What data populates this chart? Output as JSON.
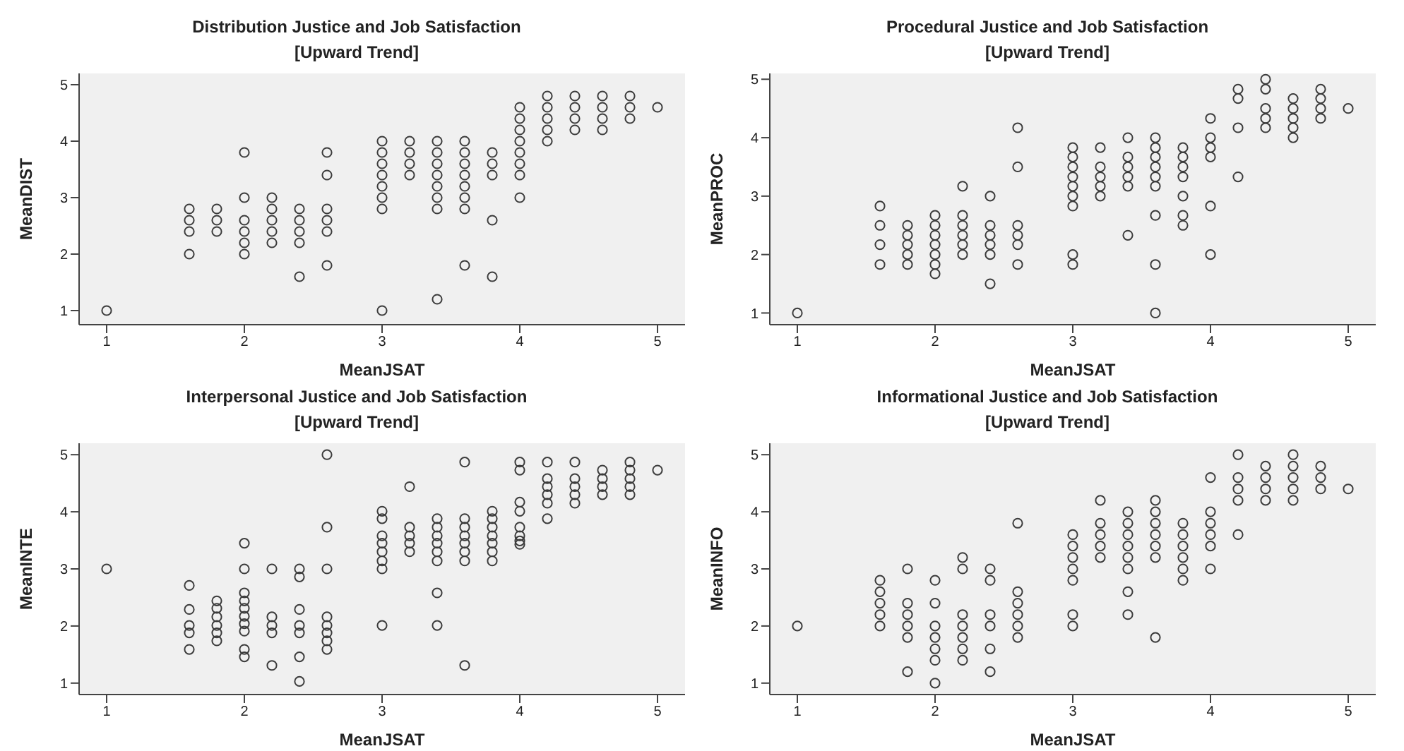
{
  "chart_data": [
    {
      "type": "scatter",
      "title": "Distribution Justice and Job Satisfaction",
      "subtitle": "[Upward Trend]",
      "xlabel": "MeanJSAT",
      "ylabel": "MeanDIST",
      "color": "#3c3c3c",
      "marker": "circle",
      "grid": false,
      "xlim": [
        0.8,
        5.2
      ],
      "ylim": [
        0.75,
        5.2
      ],
      "xticks": [
        1,
        2,
        3,
        4,
        5
      ],
      "yticks": [
        1,
        2,
        3,
        4,
        5
      ],
      "x": [
        1,
        1.6,
        1.6,
        1.6,
        1.6,
        1.8,
        1.8,
        1.8,
        2,
        2,
        2,
        2,
        2,
        2,
        2.2,
        2.2,
        2.2,
        2.2,
        2.2,
        2.4,
        2.4,
        2.4,
        2.4,
        2.4,
        2.6,
        2.6,
        2.6,
        2.6,
        2.6,
        2.6,
        3,
        3,
        3,
        3,
        3,
        3,
        3,
        3,
        3.2,
        3.2,
        3.2,
        3.2,
        3.4,
        3.4,
        3.4,
        3.4,
        3.4,
        3.4,
        3.4,
        3.4,
        3.6,
        3.6,
        3.6,
        3.6,
        3.6,
        3.6,
        3.6,
        3.6,
        3.8,
        3.8,
        3.8,
        3.8,
        3.8,
        4,
        4,
        4,
        4,
        4,
        4,
        4,
        4,
        4.2,
        4.2,
        4.2,
        4.2,
        4.2,
        4.4,
        4.4,
        4.4,
        4.4,
        4.6,
        4.6,
        4.6,
        4.6,
        4.8,
        4.8,
        4.8,
        5
      ],
      "values": [
        1,
        2.8,
        2.6,
        2.4,
        2.0,
        2.8,
        2.6,
        2.4,
        3.8,
        3.0,
        2.6,
        2.4,
        2.2,
        2.0,
        3.0,
        2.8,
        2.6,
        2.4,
        2.2,
        2.8,
        2.6,
        2.4,
        2.2,
        1.6,
        3.8,
        3.4,
        2.8,
        2.6,
        2.4,
        1.8,
        4.0,
        3.8,
        3.6,
        3.4,
        3.2,
        3.0,
        2.8,
        1.0,
        4.0,
        3.8,
        3.6,
        3.4,
        4.0,
        3.8,
        3.6,
        3.4,
        3.2,
        3.0,
        2.8,
        1.2,
        4.0,
        3.8,
        3.6,
        3.4,
        3.2,
        3.0,
        2.8,
        1.8,
        3.8,
        3.6,
        3.4,
        2.6,
        1.6,
        4.6,
        4.4,
        4.2,
        4.0,
        3.8,
        3.6,
        3.4,
        3.0,
        4.8,
        4.6,
        4.4,
        4.2,
        4.0,
        4.8,
        4.6,
        4.4,
        4.2,
        4.8,
        4.6,
        4.4,
        4.2,
        4.8,
        4.6,
        4.4,
        4.6
      ]
    },
    {
      "type": "scatter",
      "title": "Procedural Justice and Job Satisfaction",
      "subtitle": "[Upward Trend]",
      "xlabel": "MeanJSAT",
      "ylabel": "MeanPROC",
      "color": "#3c3c3c",
      "marker": "circle",
      "grid": false,
      "xlim": [
        0.8,
        5.2
      ],
      "ylim": [
        0.8,
        5.1
      ],
      "xticks": [
        1,
        2,
        3,
        4,
        5
      ],
      "yticks": [
        1,
        2,
        3,
        4,
        5
      ],
      "x": [
        1,
        1.6,
        1.6,
        1.6,
        1.6,
        1.8,
        1.8,
        1.8,
        1.8,
        1.8,
        2,
        2,
        2,
        2,
        2,
        2,
        2,
        2.2,
        2.2,
        2.2,
        2.2,
        2.2,
        2.2,
        2.4,
        2.4,
        2.4,
        2.4,
        2.4,
        2.4,
        2.6,
        2.6,
        2.6,
        2.6,
        2.6,
        2.6,
        3,
        3,
        3,
        3,
        3,
        3,
        3,
        3,
        3,
        3.2,
        3.2,
        3.2,
        3.2,
        3.2,
        3.4,
        3.4,
        3.4,
        3.4,
        3.4,
        3.4,
        3.6,
        3.6,
        3.6,
        3.6,
        3.6,
        3.6,
        3.6,
        3.6,
        3.6,
        3.8,
        3.8,
        3.8,
        3.8,
        3.8,
        3.8,
        3.8,
        4,
        4,
        4,
        4,
        4,
        4,
        4.2,
        4.2,
        4.2,
        4.2,
        4.4,
        4.4,
        4.4,
        4.4,
        4.4,
        4.6,
        4.6,
        4.6,
        4.6,
        4.6,
        4.8,
        4.8,
        4.8,
        4.8,
        5
      ],
      "values": [
        1.0,
        2.83,
        2.5,
        2.17,
        1.83,
        2.5,
        2.33,
        2.17,
        2.0,
        1.83,
        2.67,
        2.5,
        2.33,
        2.17,
        2.0,
        1.83,
        1.67,
        3.17,
        2.67,
        2.5,
        2.33,
        2.17,
        2.0,
        3.0,
        2.5,
        2.33,
        2.17,
        2.0,
        1.5,
        4.17,
        3.5,
        2.5,
        2.33,
        2.17,
        1.83,
        3.83,
        3.67,
        3.5,
        3.33,
        3.17,
        3.0,
        2.83,
        2.0,
        1.83,
        3.83,
        3.5,
        3.33,
        3.17,
        3.0,
        4.0,
        3.67,
        3.5,
        3.33,
        3.17,
        2.33,
        4.0,
        3.83,
        3.67,
        3.5,
        3.33,
        3.17,
        2.67,
        1.83,
        1.0,
        3.83,
        3.67,
        3.5,
        3.33,
        3.0,
        2.67,
        2.5,
        4.33,
        4.0,
        3.83,
        3.67,
        2.83,
        2.0,
        4.83,
        4.67,
        4.17,
        3.33,
        5.0,
        4.83,
        4.5,
        4.33,
        4.17,
        4.67,
        4.5,
        4.33,
        4.17,
        4.0,
        4.83,
        4.67,
        4.5,
        4.33,
        4.5
      ]
    },
    {
      "type": "scatter",
      "title": "Interpersonal Justice and Job Satisfaction",
      "subtitle": "[Upward Trend]",
      "xlabel": "MeanJSAT",
      "ylabel": "MeanINTE",
      "color": "#3c3c3c",
      "marker": "circle",
      "grid": false,
      "xlim": [
        0.8,
        5.2
      ],
      "ylim": [
        0.8,
        5.2
      ],
      "xticks": [
        1,
        2,
        3,
        4,
        5
      ],
      "yticks": [
        1,
        2,
        3,
        4,
        5
      ],
      "x": [
        1,
        1.6,
        1.6,
        1.6,
        1.6,
        1.6,
        1.8,
        1.8,
        1.8,
        1.8,
        1.8,
        1.8,
        2,
        2,
        2,
        2,
        2,
        2,
        2,
        2,
        2,
        2,
        2.2,
        2.2,
        2.2,
        2.2,
        2.2,
        2.4,
        2.4,
        2.4,
        2.4,
        2.4,
        2.4,
        2.4,
        2.6,
        2.6,
        2.6,
        2.6,
        2.6,
        2.6,
        2.6,
        2.6,
        3,
        3,
        3,
        3,
        3,
        3,
        3,
        3,
        3.2,
        3.2,
        3.2,
        3.2,
        3.2,
        3.4,
        3.4,
        3.4,
        3.4,
        3.4,
        3.4,
        3.4,
        3.4,
        3.6,
        3.6,
        3.6,
        3.6,
        3.6,
        3.6,
        3.6,
        3.6,
        3.8,
        3.8,
        3.8,
        3.8,
        3.8,
        3.8,
        3.8,
        4,
        4,
        4,
        4,
        4,
        4,
        4,
        4,
        4.2,
        4.2,
        4.2,
        4.2,
        4.2,
        4.2,
        4.4,
        4.4,
        4.4,
        4.4,
        4.4,
        4.6,
        4.6,
        4.6,
        4.6,
        4.8,
        4.8,
        4.8,
        4.8,
        4.8,
        5
      ],
      "values": [
        3.0,
        2.71,
        2.29,
        2.01,
        1.88,
        1.59,
        2.44,
        2.31,
        2.16,
        2.01,
        1.88,
        1.74,
        3.45,
        3.0,
        2.58,
        2.44,
        2.31,
        2.17,
        2.04,
        1.91,
        1.59,
        1.46,
        3.0,
        2.16,
        2.01,
        1.88,
        1.31,
        3.0,
        2.86,
        2.29,
        2.01,
        1.88,
        1.46,
        1.03,
        5.0,
        3.73,
        3.0,
        2.16,
        2.01,
        1.88,
        1.74,
        1.59,
        4.01,
        3.88,
        3.58,
        3.45,
        3.3,
        3.14,
        3.0,
        2.01,
        4.44,
        3.73,
        3.58,
        3.45,
        3.3,
        3.88,
        3.73,
        3.58,
        3.45,
        3.3,
        3.14,
        2.58,
        2.01,
        4.87,
        3.88,
        3.73,
        3.58,
        3.45,
        3.3,
        3.14,
        1.31,
        4.01,
        3.88,
        3.73,
        3.58,
        3.45,
        3.3,
        3.14,
        4.87,
        4.73,
        4.17,
        4.01,
        3.73,
        3.58,
        3.49,
        3.43,
        4.87,
        4.58,
        4.44,
        4.3,
        4.15,
        3.88,
        4.87,
        4.58,
        4.44,
        4.3,
        4.15,
        4.73,
        4.58,
        4.44,
        4.3,
        4.87,
        4.73,
        4.58,
        4.44,
        4.3,
        4.73
      ]
    },
    {
      "type": "scatter",
      "title": "Informational Justice and Job Satisfaction",
      "subtitle": "[Upward Trend]",
      "xlabel": "MeanJSAT",
      "ylabel": "MeanINFO",
      "color": "#3c3c3c",
      "marker": "circle",
      "grid": false,
      "xlim": [
        0.8,
        5.2
      ],
      "ylim": [
        0.8,
        5.2
      ],
      "xticks": [
        1,
        2,
        3,
        4,
        5
      ],
      "yticks": [
        1,
        2,
        3,
        4,
        5
      ],
      "x": [
        1,
        1.6,
        1.6,
        1.6,
        1.6,
        1.6,
        1.8,
        1.8,
        1.8,
        1.8,
        1.8,
        1.8,
        2,
        2,
        2,
        2,
        2,
        2,
        2,
        2.2,
        2.2,
        2.2,
        2.2,
        2.2,
        2.2,
        2.2,
        2.4,
        2.4,
        2.4,
        2.4,
        2.4,
        2.4,
        2.6,
        2.6,
        2.6,
        2.6,
        2.6,
        2.6,
        3,
        3,
        3,
        3,
        3,
        3,
        3,
        3.2,
        3.2,
        3.2,
        3.2,
        3.2,
        3.4,
        3.4,
        3.4,
        3.4,
        3.4,
        3.4,
        3.4,
        3.4,
        3.6,
        3.6,
        3.6,
        3.6,
        3.6,
        3.6,
        3.6,
        3.8,
        3.8,
        3.8,
        3.8,
        3.8,
        3.8,
        4,
        4,
        4,
        4,
        4,
        4,
        4.2,
        4.2,
        4.2,
        4.2,
        4.2,
        4.4,
        4.4,
        4.4,
        4.4,
        4.6,
        4.6,
        4.6,
        4.6,
        4.6,
        4.8,
        4.8,
        4.8,
        5
      ],
      "values": [
        2.0,
        2.8,
        2.6,
        2.4,
        2.2,
        2.0,
        3.0,
        2.4,
        2.2,
        2.0,
        1.8,
        1.2,
        2.8,
        2.4,
        2.0,
        1.8,
        1.6,
        1.4,
        1.0,
        3.2,
        3.0,
        2.2,
        2.0,
        1.8,
        1.6,
        1.4,
        3.0,
        2.8,
        2.2,
        2.0,
        1.6,
        1.2,
        3.8,
        2.6,
        2.4,
        2.2,
        2.0,
        1.8,
        3.6,
        3.4,
        3.2,
        3.0,
        2.8,
        2.2,
        2.0,
        4.2,
        3.8,
        3.6,
        3.4,
        3.2,
        4.0,
        3.8,
        3.6,
        3.4,
        3.2,
        3.0,
        2.6,
        2.2,
        4.2,
        4.0,
        3.8,
        3.6,
        3.4,
        3.2,
        1.8,
        3.8,
        3.6,
        3.4,
        3.2,
        3.0,
        2.8,
        4.6,
        4.0,
        3.8,
        3.6,
        3.4,
        3.0,
        5.0,
        4.6,
        4.4,
        4.2,
        3.6,
        4.8,
        4.6,
        4.4,
        4.2,
        5.0,
        4.8,
        4.6,
        4.4,
        4.2,
        4.8,
        4.6,
        4.4,
        4.4
      ]
    }
  ]
}
